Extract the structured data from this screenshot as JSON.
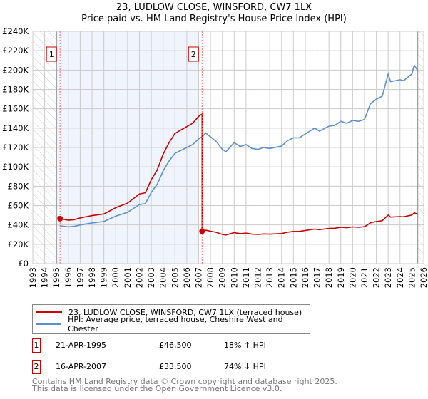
{
  "title_line1": "23, LUDLOW CLOSE, WINSFORD, CW7 1LX",
  "title_line2": "Price paid vs. HM Land Registry's House Price Index (HPI)",
  "legend": [
    {
      "label": "23, LUDLOW CLOSE, WINSFORD, CW7 1LX (terraced house)",
      "color": "#cc0000"
    },
    {
      "label": "HPI: Average price, terraced house, Cheshire West and Chester",
      "color": "#5b8fd0"
    }
  ],
  "sales": [
    {
      "num": "1",
      "date": "21-APR-1995",
      "price": "£46,500",
      "hpi": "18% ↑ HPI"
    },
    {
      "num": "2",
      "date": "16-APR-2007",
      "price": "£33,500",
      "hpi": "74% ↓ HPI"
    }
  ],
  "footer_line1": "Contains HM Land Registry data © Crown copyright and database right 2025.",
  "footer_line2": "This data is licensed under the Open Government Licence v3.0.",
  "chart_data": {
    "type": "line",
    "xlim": [
      1993,
      2026
    ],
    "ylim": [
      0,
      240000
    ],
    "grid": true,
    "y_ticks": [
      0,
      20000,
      40000,
      60000,
      80000,
      100000,
      120000,
      140000,
      160000,
      180000,
      200000,
      220000,
      240000
    ],
    "y_tick_labels": [
      "£0",
      "£20K",
      "£40K",
      "£60K",
      "£80K",
      "£100K",
      "£120K",
      "£140K",
      "£160K",
      "£180K",
      "£200K",
      "£220K",
      "£240K"
    ],
    "x_ticks": [
      1993,
      1994,
      1995,
      1996,
      1997,
      1998,
      1999,
      2000,
      2001,
      2002,
      2003,
      2004,
      2005,
      2006,
      2007,
      2008,
      2009,
      2010,
      2011,
      2012,
      2013,
      2014,
      2015,
      2016,
      2017,
      2018,
      2019,
      2020,
      2021,
      2022,
      2023,
      2024,
      2025,
      2026
    ],
    "x_tick_labels": [
      "1993",
      "1994",
      "1995",
      "1996",
      "1997",
      "1998",
      "1999",
      "2000",
      "2001",
      "2002",
      "2003",
      "2004",
      "2005",
      "2006",
      "2007",
      "2008",
      "2009",
      "2010",
      "2011",
      "2012",
      "2013",
      "2014",
      "2015",
      "2016",
      "2017",
      "2018",
      "2019",
      "2020",
      "2021",
      "2022",
      "2023",
      "2024",
      "2025",
      "2026"
    ],
    "hatched_before": 1995.0,
    "hatched_after": 2025.5,
    "shaded_range": [
      1995.0,
      2007.0
    ],
    "markers": [
      {
        "label": "1",
        "x": 1995.3,
        "y": 46500
      },
      {
        "label": "2",
        "x": 2007.29,
        "y": 33500
      }
    ],
    "series": [
      {
        "name": "23, LUDLOW CLOSE, WINSFORD, CW7 1LX (terraced house)",
        "color": "#cc0000",
        "x": [
          1995.3,
          1996,
          1996.5,
          1997,
          1998,
          1999,
          2000,
          2001,
          2002,
          2002.5,
          2003,
          2003.5,
          2004,
          2004.5,
          2005,
          2005.5,
          2006,
          2006.5,
          2007,
          2007.29,
          2007.29,
          2007.6,
          2008,
          2008.5,
          2009,
          2009.3,
          2009.7,
          2010,
          2010.5,
          2011,
          2011.5,
          2012,
          2012.5,
          2013,
          2014,
          2014.5,
          2015,
          2015.5,
          2016,
          2016.8,
          2017.2,
          2018,
          2018.5,
          2019,
          2019.5,
          2020,
          2020.5,
          2021,
          2021.5,
          2022,
          2022.5,
          2023,
          2023.2,
          2024,
          2024.3,
          2025,
          2025.2,
          2025.5
        ],
        "y": [
          46500,
          44800,
          45400,
          47200,
          49600,
          51300,
          57800,
          62500,
          72000,
          73200,
          86800,
          96800,
          112900,
          125100,
          134500,
          138100,
          141600,
          145100,
          152200,
          154600,
          33500,
          34500,
          33500,
          32300,
          30200,
          29600,
          31000,
          32000,
          31000,
          31500,
          30500,
          30200,
          30700,
          30500,
          31100,
          32500,
          33300,
          33300,
          34300,
          35800,
          35100,
          36400,
          36600,
          37600,
          37100,
          37900,
          37600,
          38100,
          42200,
          43500,
          44300,
          50200,
          48100,
          48600,
          48400,
          50200,
          52500,
          51100
        ]
      },
      {
        "name": "HPI: Average price, terraced house, Cheshire West and Chester",
        "color": "#5b8fd0",
        "x": [
          1995.3,
          1996,
          1996.5,
          1997,
          1998,
          1999,
          2000,
          2001,
          2002,
          2002.5,
          2003,
          2003.5,
          2004,
          2004.5,
          2005,
          2005.5,
          2006,
          2006.5,
          2007,
          2007.29,
          2007.6,
          2008,
          2008.5,
          2009,
          2009.3,
          2009.7,
          2010,
          2010.5,
          2011,
          2011.5,
          2012,
          2012.5,
          2013,
          2014,
          2014.5,
          2015,
          2015.5,
          2016,
          2016.8,
          2017.2,
          2018,
          2018.5,
          2019,
          2019.5,
          2020,
          2020.5,
          2021,
          2021.5,
          2022,
          2022.5,
          2023,
          2023.2,
          2024,
          2024.3,
          2025,
          2025.2,
          2025.5
        ],
        "y": [
          39000,
          38000,
          38500,
          40000,
          42000,
          43500,
          49000,
          53000,
          61000,
          62000,
          73600,
          82000,
          95700,
          106000,
          114000,
          117000,
          120000,
          123000,
          129000,
          131000,
          135000,
          131000,
          126000,
          118000,
          115600,
          121000,
          125000,
          121000,
          123000,
          119000,
          118000,
          120000,
          119000,
          121500,
          127000,
          130000,
          130000,
          134000,
          140000,
          137000,
          142000,
          143000,
          147000,
          145000,
          148000,
          147000,
          149000,
          165000,
          170000,
          173000,
          196000,
          188000,
          190000,
          189000,
          196000,
          205000,
          199500
        ]
      }
    ]
  }
}
